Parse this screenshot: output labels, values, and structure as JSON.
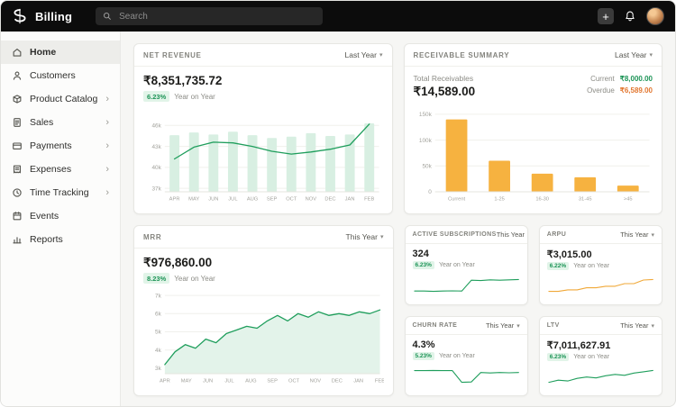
{
  "ui": {
    "chevron_down": "▾",
    "chevron_right": "›",
    "plus": "+"
  },
  "topbar": {
    "app_title": "Billing",
    "search_placeholder": "Search"
  },
  "sidebar": {
    "items": [
      {
        "label": "Home",
        "icon": "home-icon",
        "active": true
      },
      {
        "label": "Customers",
        "icon": "customers-icon"
      },
      {
        "label": "Product Catalog",
        "icon": "product-catalog-icon",
        "expandable": true
      },
      {
        "label": "Sales",
        "icon": "sales-icon",
        "expandable": true
      },
      {
        "label": "Payments",
        "icon": "payments-icon",
        "expandable": true
      },
      {
        "label": "Expenses",
        "icon": "expenses-icon",
        "expandable": true
      },
      {
        "label": "Time Tracking",
        "icon": "time-tracking-icon",
        "expandable": true
      },
      {
        "label": "Events",
        "icon": "events-icon"
      },
      {
        "label": "Reports",
        "icon": "reports-icon"
      }
    ]
  },
  "cards": {
    "net_revenue": {
      "title": "NET REVENUE",
      "period": "Last Year",
      "amount": "₹8,351,735.72",
      "badge": "6.23%",
      "caption": "Year on Year"
    },
    "receivable_summary": {
      "title": "RECEIVABLE SUMMARY",
      "period": "Last Year",
      "total_label": "Total Receivables",
      "total_amount": "₹14,589.00",
      "current_label": "Current",
      "current_amount": "₹8,000.00",
      "overdue_label": "Overdue",
      "overdue_amount": "₹6,589.00"
    },
    "mrr": {
      "title": "MRR",
      "period": "This Year",
      "amount": "₹976,860.00",
      "badge": "8.23%",
      "caption": "Year on Year"
    },
    "active_subscriptions": {
      "title": "ACTIVE SUBSCRIPTIONS",
      "period": "This Year",
      "value": "324",
      "badge": "6.23%",
      "caption": "Year on Year"
    },
    "arpu": {
      "title": "ARPU",
      "period": "This Year",
      "value": "₹3,015.00",
      "badge": "6.22%",
      "caption": "Year on Year"
    },
    "churn_rate": {
      "title": "CHURN RATE",
      "period": "This Year",
      "value": "4.3%",
      "badge": "5.23%",
      "caption": "Year on Year"
    },
    "ltv": {
      "title": "LTV",
      "period": "This Year",
      "value": "₹7,011,627.91",
      "badge": "6.23%",
      "caption": "Year on Year"
    }
  },
  "colors": {
    "accent_green": "#1f9e5c",
    "badge_bg": "#e1f4e8",
    "bar_light_green": "#d8efe2",
    "amber": "#f6b240",
    "overdue_orange": "#e2762f"
  },
  "chart_data": [
    {
      "id": "net_revenue",
      "type": "combo",
      "title": "Net Revenue",
      "categories": [
        "APR",
        "MAY",
        "JUN",
        "JUL",
        "AUG",
        "SEP",
        "OCT",
        "NOV",
        "DEC",
        "JAN",
        "FEB"
      ],
      "series": [
        {
          "name": "revenue-bars",
          "type": "bar",
          "values": [
            44.6,
            45.0,
            44.7,
            45.1,
            44.6,
            44.2,
            44.4,
            44.9,
            44.5,
            44.7,
            46.3
          ]
        },
        {
          "name": "revenue-trend",
          "type": "line",
          "values": [
            41.2,
            42.9,
            43.6,
            43.5,
            43.0,
            42.3,
            41.9,
            42.2,
            42.6,
            43.2,
            46.2
          ]
        }
      ],
      "ylim": [
        36.5,
        47.2
      ],
      "yticks": [
        46,
        43,
        40,
        37
      ],
      "ytick_labels": [
        "46k",
        "43k",
        "40k",
        "37k"
      ],
      "bar_color": "#d8efe2",
      "line_color": "#1f9e5c",
      "legend": "off",
      "grid": "on"
    },
    {
      "id": "receivable_summary",
      "type": "bar",
      "title": "Receivable Summary",
      "categories": [
        "Current",
        "1-25",
        "16-30",
        "31-45",
        ">45"
      ],
      "values": [
        140000,
        60000,
        35000,
        28000,
        12000
      ],
      "ylim": [
        0,
        155000
      ],
      "yticks": [
        150000,
        100000,
        50000,
        0
      ],
      "ytick_labels": [
        "150k",
        "100k",
        "50k",
        "0"
      ],
      "bar_color": "#f6b240",
      "legend": "off",
      "grid": "on"
    },
    {
      "id": "mrr",
      "type": "area",
      "title": "MRR",
      "categories": [
        "APR",
        "MAY",
        "JUN",
        "JUL",
        "AUG",
        "SEP",
        "OCT",
        "NOV",
        "DEC",
        "JAN",
        "FEB"
      ],
      "values": [
        3.2,
        3.9,
        4.3,
        4.1,
        4.6,
        4.4,
        4.9,
        5.1,
        5.3,
        5.2,
        5.6,
        5.9,
        5.6,
        6.0,
        5.8,
        6.1,
        5.9,
        6.0,
        5.9,
        6.1,
        6.0,
        6.2
      ],
      "ylim": [
        2.7,
        7.3
      ],
      "yticks": [
        7,
        6,
        5,
        4,
        3
      ],
      "ytick_labels": [
        "7k",
        "6k",
        "5k",
        "4k",
        "3k"
      ],
      "line_color": "#1f9e5c",
      "fill_color": "#e3f3ea",
      "legend": "off",
      "grid": "on"
    },
    {
      "id": "active_subscriptions",
      "type": "spark",
      "title": "Active Subscriptions trend",
      "values": [
        1,
        1,
        0.95,
        1,
        1.02,
        1,
        2.45,
        2.4,
        2.5,
        2.45,
        2.5,
        2.55
      ],
      "line_color": "#1f9e5c"
    },
    {
      "id": "arpu",
      "type": "spark",
      "title": "ARPU trend",
      "values": [
        1,
        1,
        1.15,
        1.15,
        1.35,
        1.35,
        1.5,
        1.5,
        1.75,
        1.75,
        2.1,
        2.15
      ],
      "line_color": "#f0a838"
    },
    {
      "id": "churn_rate",
      "type": "spark",
      "title": "Churn Rate trend",
      "values": [
        2,
        2,
        2.02,
        2,
        2,
        0.5,
        0.55,
        1.75,
        1.7,
        1.75,
        1.72,
        1.75
      ],
      "line_color": "#1f9e5c"
    },
    {
      "id": "ltv",
      "type": "spark",
      "title": "LTV trend",
      "values": [
        1,
        1.25,
        1.15,
        1.45,
        1.6,
        1.5,
        1.75,
        1.9,
        1.8,
        2.05,
        2.2,
        2.35
      ],
      "line_color": "#1f9e5c"
    }
  ]
}
